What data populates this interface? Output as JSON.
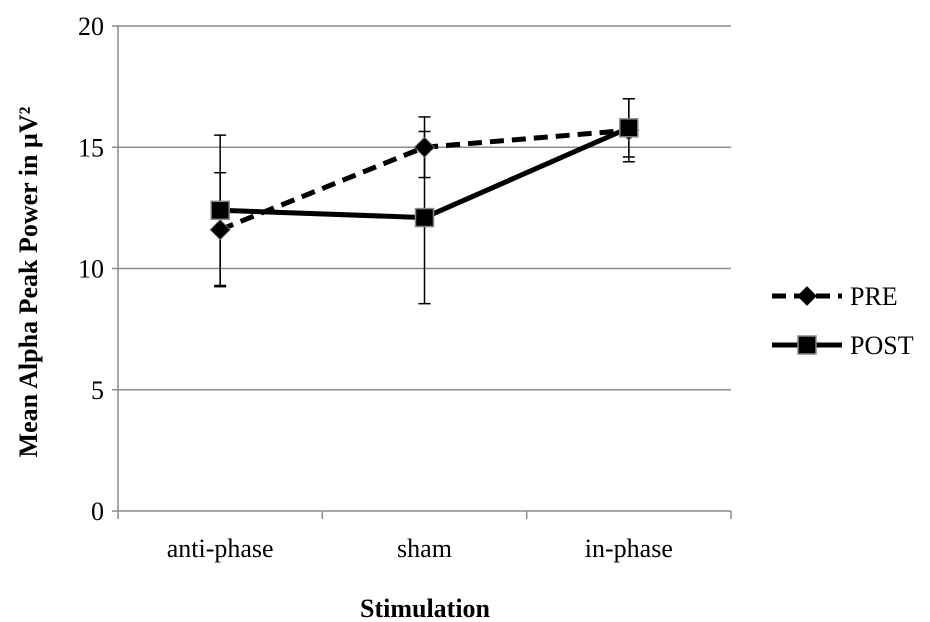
{
  "chart_data": {
    "type": "line",
    "title": "",
    "xlabel": "Stimulation",
    "ylabel": "Mean Alpha Peak Power in µV²",
    "categories": [
      "anti-phase",
      "sham",
      "in-phase"
    ],
    "ylim": [
      0,
      20
    ],
    "yticks": [
      "0",
      "5",
      "10",
      "15",
      "20"
    ],
    "grid": "horizontal",
    "legend_position": "right",
    "series": [
      {
        "name": "PRE",
        "values": [
          11.6,
          15.0,
          15.7
        ],
        "error": [
          [
            2.35,
            2.35
          ],
          [
            1.25,
            1.25
          ],
          [
            1.3,
            1.3
          ]
        ],
        "line": "dashed",
        "marker": "diamond",
        "color": "#000000"
      },
      {
        "name": "POST",
        "values": [
          12.4,
          12.1,
          15.8
        ],
        "error": [
          [
            3.1,
            3.1
          ],
          [
            3.55,
            3.55
          ],
          [
            1.2,
            1.2
          ]
        ],
        "line": "solid",
        "marker": "square",
        "color": "#000000"
      }
    ]
  }
}
